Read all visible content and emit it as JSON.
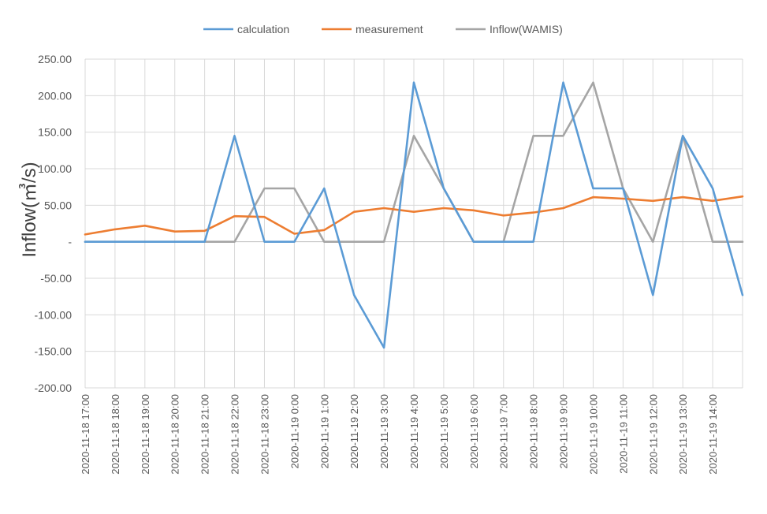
{
  "chart_data": {
    "type": "line",
    "title": "",
    "xlabel": "",
    "ylabel": "Inflow(㎥/s)",
    "ylim": [
      -200,
      250
    ],
    "y_ticks": [
      "250.00",
      "200.00",
      "150.00",
      "100.00",
      "50.00",
      "-",
      "-50.00",
      "-100.00",
      "-150.00",
      "-200.00"
    ],
    "y_tick_values": [
      250,
      200,
      150,
      100,
      50,
      0,
      -50,
      -100,
      -150,
      -200
    ],
    "categories": [
      "2020-11-18 17:00",
      "2020-11-18 18:00",
      "2020-11-18 19:00",
      "2020-11-18 20:00",
      "2020-11-18 21:00",
      "2020-11-18 22:00",
      "2020-11-18 23:00",
      "2020-11-19 0:00",
      "2020-11-19 1:00",
      "2020-11-19 2:00",
      "2020-11-19 3:00",
      "2020-11-19 4:00",
      "2020-11-19 5:00",
      "2020-11-19 6:00",
      "2020-11-19 7:00",
      "2020-11-19 8:00",
      "2020-11-19 9:00",
      "2020-11-19 10:00",
      "2020-11-19 11:00",
      "2020-11-19 12:00",
      "2020-11-19 13:00",
      "2020-11-19 14:00",
      ""
    ],
    "grid": true,
    "legend_position": "top",
    "series": [
      {
        "name": "calculation",
        "color": "#5b9bd5",
        "values": [
          0,
          0,
          0,
          0,
          0,
          145,
          0,
          0,
          73,
          -73,
          -145,
          218,
          73,
          0,
          0,
          0,
          218,
          73,
          73,
          -73,
          145,
          73,
          -73
        ]
      },
      {
        "name": "measurement",
        "color": "#ed7d31",
        "values": [
          10,
          17,
          22,
          14,
          15,
          35,
          34,
          11,
          16,
          41,
          46,
          41,
          46,
          43,
          36,
          40,
          46,
          61,
          59,
          56,
          61,
          56,
          62
        ]
      },
      {
        "name": "Inflow(WAMIS)",
        "color": "#a5a5a5",
        "values": [
          0,
          0,
          0,
          0,
          0,
          0,
          73,
          73,
          0,
          0,
          0,
          145,
          73,
          0,
          0,
          145,
          145,
          218,
          73,
          0,
          145,
          0,
          0
        ]
      }
    ]
  }
}
